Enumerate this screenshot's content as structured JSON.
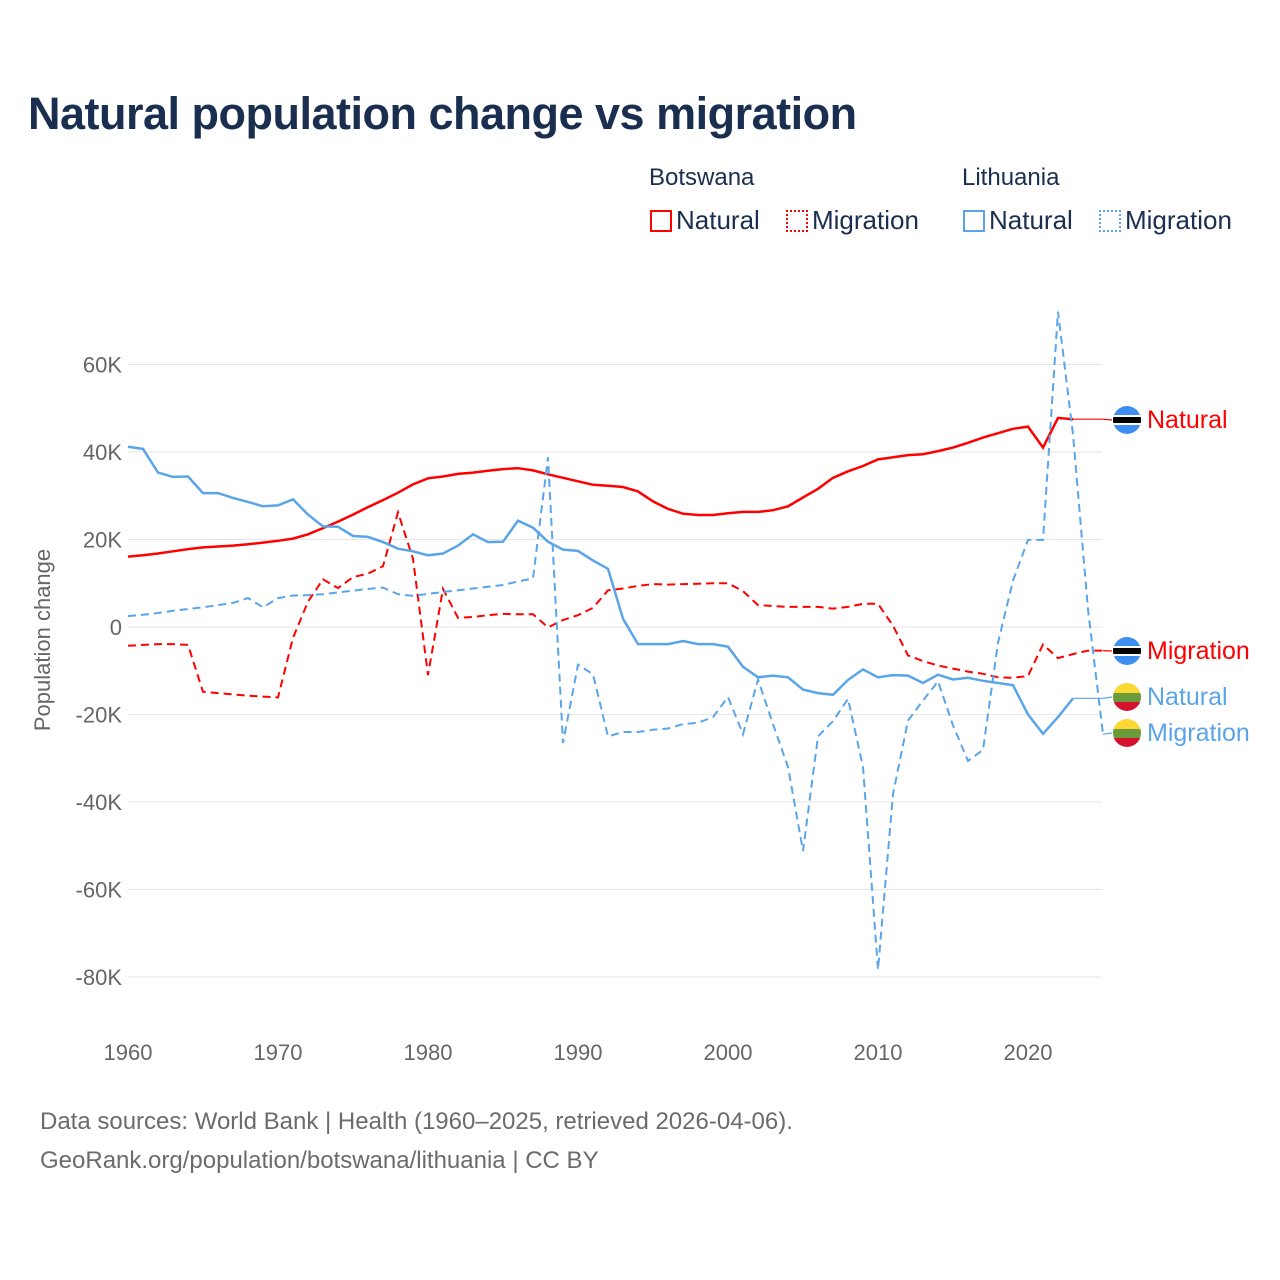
{
  "title": "Natural population change vs migration",
  "legend": {
    "groups": [
      {
        "name": "Botswana",
        "color": "#ff0000",
        "items": [
          "Natural",
          "Migration"
        ]
      },
      {
        "name": "Lithuania",
        "color": "#5aa5ea",
        "items": [
          "Natural",
          "Migration"
        ]
      }
    ]
  },
  "source": {
    "line1": "Data sources: World Bank | Health (1960–2025, retrieved 2026-04-06).",
    "line2": "GeoRank.org/population/botswana/lithuania | CC BY"
  },
  "chart_data": {
    "type": "line",
    "title": "Natural population change vs migration",
    "xlabel": "",
    "ylabel": "Population change",
    "xlim": [
      1960,
      2025
    ],
    "ylim": [
      -90,
      75
    ],
    "y_unit": "thousands",
    "x_ticks": [
      1960,
      1970,
      1980,
      1990,
      2000,
      2010,
      2020
    ],
    "y_ticks": [
      {
        "v": 60,
        "label": "60K"
      },
      {
        "v": 40,
        "label": "40K"
      },
      {
        "v": 20,
        "label": "20K"
      },
      {
        "v": 0,
        "label": "0"
      },
      {
        "v": -20,
        "label": "-20K"
      },
      {
        "v": -40,
        "label": "-40K"
      },
      {
        "v": -60,
        "label": "-60K"
      },
      {
        "v": -80,
        "label": "-80K"
      }
    ],
    "grid": true,
    "x_start": 1960,
    "series": [
      {
        "name": "Botswana Natural",
        "label": "Natural",
        "color": "#ff0000",
        "dash": false,
        "flag": "botswana",
        "values": [
          16.1,
          16.4,
          16.8,
          17.3,
          17.8,
          18.2,
          18.4,
          18.6,
          18.9,
          19.3,
          19.7,
          20.2,
          21.2,
          22.6,
          24.1,
          25.7,
          27.4,
          29.0,
          30.7,
          32.6,
          34.0,
          34.4,
          35.0,
          35.3,
          35.7,
          36.1,
          36.3,
          35.8,
          34.9,
          34.1,
          33.3,
          32.5,
          32.3,
          32.0,
          31.0,
          28.7,
          27.0,
          25.9,
          25.6,
          25.6,
          26.0,
          26.3,
          26.3,
          26.7,
          27.6,
          29.6,
          31.6,
          34.1,
          35.6,
          36.8,
          38.3,
          38.8,
          39.3,
          39.5,
          40.2,
          41.0,
          42.1,
          43.3,
          44.3,
          45.3,
          45.8,
          41.0,
          47.8,
          47.5,
          null,
          null
        ]
      },
      {
        "name": "Botswana Migration",
        "label": "Migration",
        "color": "#ff0000",
        "dash": true,
        "flag": "botswana",
        "values": [
          -4.3,
          -4.1,
          -3.9,
          -3.9,
          -4.1,
          -14.8,
          -15.1,
          -15.4,
          -15.7,
          -15.9,
          -16.1,
          -2.5,
          5.8,
          10.9,
          8.9,
          11.4,
          12.2,
          13.9,
          26.2,
          15.6,
          -11.0,
          8.7,
          2.1,
          2.3,
          2.7,
          3.0,
          2.9,
          2.9,
          -0.1,
          1.6,
          2.7,
          4.4,
          8.4,
          8.8,
          9.4,
          9.8,
          9.7,
          9.8,
          9.9,
          10.0,
          10.0,
          8.2,
          5.0,
          4.8,
          4.6,
          4.6,
          4.6,
          4.2,
          4.6,
          5.3,
          5.3,
          0.3,
          -6.5,
          -7.8,
          -8.8,
          -9.5,
          -10.2,
          -10.7,
          -11.5,
          -11.6,
          -11.2,
          -4.0,
          -7.1,
          -6.2,
          -5.4,
          -5.4
        ]
      },
      {
        "name": "Lithuania Natural",
        "label": "Natural",
        "color": "#5aa5ea",
        "dash": false,
        "flag": "lithuania",
        "values": [
          41.2,
          40.7,
          35.3,
          34.3,
          34.4,
          30.6,
          30.6,
          29.5,
          28.6,
          27.6,
          27.8,
          29.2,
          25.7,
          23.0,
          22.9,
          20.8,
          20.6,
          19.4,
          17.9,
          17.3,
          16.4,
          16.8,
          18.6,
          21.2,
          19.4,
          19.5,
          24.3,
          22.7,
          19.5,
          17.7,
          17.4,
          15.2,
          13.3,
          1.9,
          -3.9,
          -3.9,
          -3.9,
          -3.2,
          -3.9,
          -3.9,
          -4.5,
          -9.1,
          -11.5,
          -11.1,
          -11.5,
          -14.3,
          -15.1,
          -15.5,
          -12.1,
          -9.7,
          -11.5,
          -11.0,
          -11.1,
          -12.8,
          -10.9,
          -12.0,
          -11.6,
          -12.3,
          -12.8,
          -13.3,
          -20.0,
          -24.4,
          -20.6,
          -16.3,
          null,
          null
        ]
      },
      {
        "name": "Lithuania Migration",
        "label": "Migration",
        "color": "#5aa5ea",
        "dash": true,
        "flag": "lithuania",
        "values": [
          2.5,
          2.8,
          3.2,
          3.7,
          4.1,
          4.5,
          5.0,
          5.5,
          6.6,
          4.5,
          6.6,
          7.2,
          7.3,
          7.5,
          7.9,
          8.3,
          8.7,
          9.0,
          7.5,
          7.1,
          7.6,
          8.0,
          8.4,
          8.8,
          9.2,
          9.6,
          10.4,
          11.1,
          38.8,
          -26.5,
          -8.6,
          -10.8,
          -25.0,
          -24.0,
          -24.0,
          -23.5,
          -23.2,
          -22.2,
          -21.9,
          -20.6,
          -16.0,
          -24.5,
          -12.0,
          -22.2,
          -32.0,
          -51.2,
          -25.0,
          -21.5,
          -16.4,
          -32.0,
          -78.3,
          -38.2,
          -21.4,
          -16.8,
          -12.4,
          -22.5,
          -30.6,
          -28.1,
          -3.6,
          10.6,
          19.9,
          19.9,
          72.1,
          44.0,
          4.0,
          -24.5
        ]
      }
    ]
  }
}
